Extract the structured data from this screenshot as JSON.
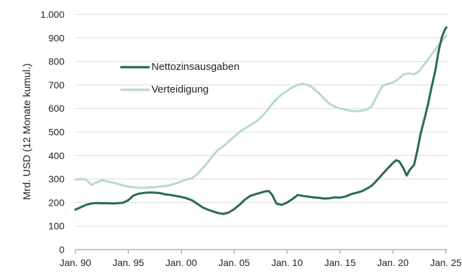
{
  "chart_data": {
    "type": "line",
    "ylabel": "Mrd. USD (12 Monate kumul.)",
    "ylim": [
      0,
      1000
    ],
    "y_ticks": [
      0,
      100,
      200,
      300,
      400,
      500,
      600,
      700,
      800,
      900,
      1000
    ],
    "y_tick_labels": [
      "0",
      "100",
      "200",
      "300",
      "400",
      "500",
      "600",
      "700",
      "800",
      "900",
      "1.000"
    ],
    "xlim": [
      1990,
      2025.1
    ],
    "x_ticks": [
      1990,
      1995,
      2000,
      2005,
      2010,
      2015,
      2020,
      2025
    ],
    "x_tick_labels": [
      "Jan. 90",
      "Jan. 95",
      "Jan. 00",
      "Jan. 05",
      "Jan. 10",
      "Jan. 15",
      "Jan. 20",
      "Jan. 25"
    ],
    "grid": "horizontal",
    "legend_position": "upper-left inside plot",
    "series": [
      {
        "name": "Nettozinsausgaben",
        "color": "#2f6b52",
        "x": [
          1990,
          1990.5,
          1991,
          1991.5,
          1992,
          1992.5,
          1993,
          1993.5,
          1994,
          1994.5,
          1995,
          1995.5,
          1996,
          1996.5,
          1997,
          1997.5,
          1998,
          1998.5,
          1999,
          1999.5,
          2000,
          2000.5,
          2001,
          2001.5,
          2002,
          2002.5,
          2003,
          2003.5,
          2004,
          2004.5,
          2005,
          2005.5,
          2006,
          2006.5,
          2007,
          2007.5,
          2008,
          2008.3,
          2008.6,
          2009,
          2009.5,
          2010,
          2010.5,
          2011,
          2011.5,
          2012,
          2012.5,
          2013,
          2013.5,
          2014,
          2014.5,
          2015,
          2015.5,
          2016,
          2016.5,
          2017,
          2017.5,
          2018,
          2018.5,
          2019,
          2019.5,
          2020,
          2020.3,
          2020.6,
          2021,
          2021.3,
          2021.6,
          2022,
          2022.3,
          2022.6,
          2023,
          2023.3,
          2023.6,
          2024,
          2024.3,
          2024.6,
          2024.9,
          2025.05
        ],
        "values": [
          170,
          180,
          190,
          196,
          198,
          197,
          197,
          196,
          197,
          199,
          210,
          230,
          238,
          241,
          243,
          242,
          240,
          235,
          232,
          228,
          224,
          218,
          210,
          195,
          180,
          170,
          162,
          155,
          152,
          158,
          172,
          190,
          212,
          228,
          235,
          242,
          248,
          248,
          232,
          195,
          190,
          200,
          215,
          232,
          228,
          225,
          222,
          220,
          217,
          218,
          222,
          221,
          225,
          235,
          241,
          247,
          258,
          272,
          295,
          320,
          345,
          368,
          380,
          375,
          345,
          315,
          340,
          360,
          420,
          490,
          560,
          615,
          680,
          760,
          840,
          900,
          935,
          945
        ]
      },
      {
        "name": "Verteidigung",
        "color": "#b7dbcd",
        "x": [
          1990,
          1990.5,
          1991,
          1991.5,
          1992,
          1992.5,
          1993,
          1993.5,
          1994,
          1994.5,
          1995,
          1995.5,
          1996,
          1996.5,
          1997,
          1997.5,
          1998,
          1998.5,
          1999,
          1999.5,
          2000,
          2000.5,
          2001,
          2001.5,
          2002,
          2002.5,
          2003,
          2003.5,
          2004,
          2004.5,
          2005,
          2005.5,
          2006,
          2006.5,
          2007,
          2007.5,
          2008,
          2008.5,
          2009,
          2009.5,
          2010,
          2010.5,
          2011,
          2011.5,
          2012,
          2012.5,
          2013,
          2013.5,
          2014,
          2014.5,
          2015,
          2015.5,
          2016,
          2016.5,
          2017,
          2017.5,
          2018,
          2018.5,
          2019,
          2019.5,
          2020,
          2020.5,
          2021,
          2021.5,
          2022,
          2022.5,
          2023,
          2023.5,
          2024,
          2024.5,
          2025.05
        ],
        "values": [
          297,
          300,
          298,
          275,
          285,
          295,
          290,
          285,
          280,
          273,
          268,
          265,
          263,
          262,
          264,
          265,
          268,
          270,
          275,
          281,
          290,
          297,
          303,
          320,
          345,
          370,
          400,
          425,
          440,
          460,
          480,
          500,
          515,
          528,
          542,
          560,
          585,
          615,
          640,
          660,
          675,
          690,
          700,
          705,
          700,
          685,
          665,
          642,
          620,
          608,
          600,
          595,
          590,
          588,
          590,
          595,
          610,
          655,
          695,
          705,
          710,
          725,
          745,
          750,
          745,
          760,
          790,
          820,
          850,
          880,
          910
        ]
      }
    ]
  }
}
